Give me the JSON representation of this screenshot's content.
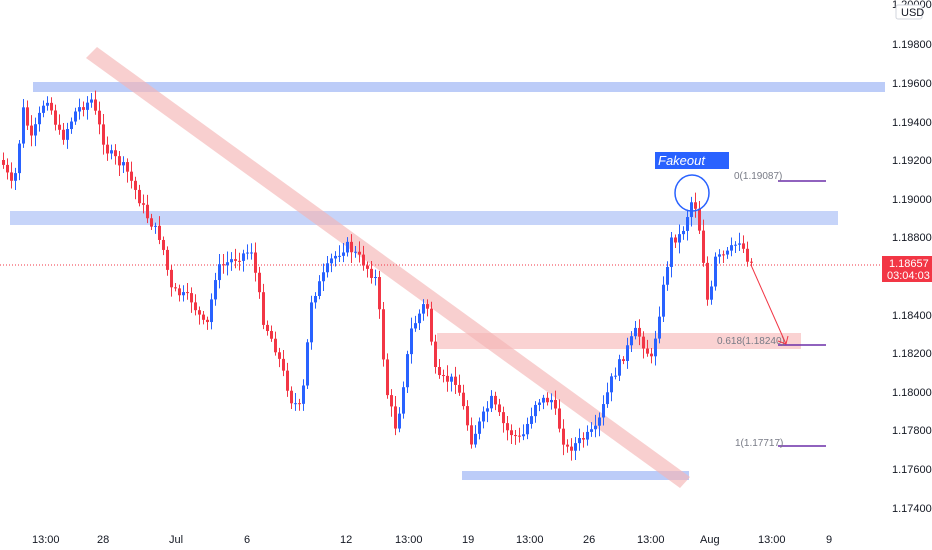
{
  "currency": "USD",
  "colors": {
    "up": "#2962ff",
    "down": "#f23645",
    "zone_blue": "#bcccf8",
    "zone_red": "#f9caca",
    "trendline": "#f5b5b5",
    "fib_line": "#6c2fa8",
    "current_line": "#f23645",
    "axis_text": "#131722",
    "callout_bg": "#2962ff"
  },
  "price_axis": {
    "ticks": [
      "1.20000",
      "1.19800",
      "1.19600",
      "1.19400",
      "1.19200",
      "1.19000",
      "1.18800",
      "1.18600",
      "1.18400",
      "1.18200",
      "1.18000",
      "1.17800",
      "1.17600",
      "1.17400"
    ],
    "tick_values": [
      1.2,
      1.198,
      1.196,
      1.194,
      1.192,
      1.19,
      1.188,
      1.186,
      1.184,
      1.182,
      1.18,
      1.178,
      1.176,
      1.174
    ]
  },
  "current_price": {
    "value": "1.18657",
    "countdown": "03:04:03",
    "level": 1.18657
  },
  "time_axis": [
    "13:00",
    "28",
    "Jul",
    "6",
    "12",
    "13:00",
    "19",
    "13:00",
    "26",
    "13:00",
    "Aug",
    "13:00",
    "9"
  ],
  "annotations": {
    "callout": "Fakeout",
    "fib_0": "0(1.19087)",
    "fib_0618": "0.618(1.18240)",
    "fib_1": "1(1.17717)"
  },
  "chart_data": {
    "type": "candlestick",
    "title": "",
    "y_unit": "USD",
    "ylim": [
      1.173,
      1.2002
    ],
    "zones": [
      {
        "from": 1.1955,
        "to": 1.196,
        "color": "blue"
      },
      {
        "from": 1.1886,
        "to": 1.1893,
        "color": "blue"
      },
      {
        "from": 1.1822,
        "to": 1.183,
        "color": "red"
      },
      {
        "from": 1.1754,
        "to": 1.1759,
        "color": "blue"
      }
    ],
    "fib_levels": [
      {
        "ratio": 0,
        "price": 1.19087
      },
      {
        "ratio": 0.618,
        "price": 1.1824
      },
      {
        "ratio": 1,
        "price": 1.17717
      }
    ],
    "candles": []
  }
}
